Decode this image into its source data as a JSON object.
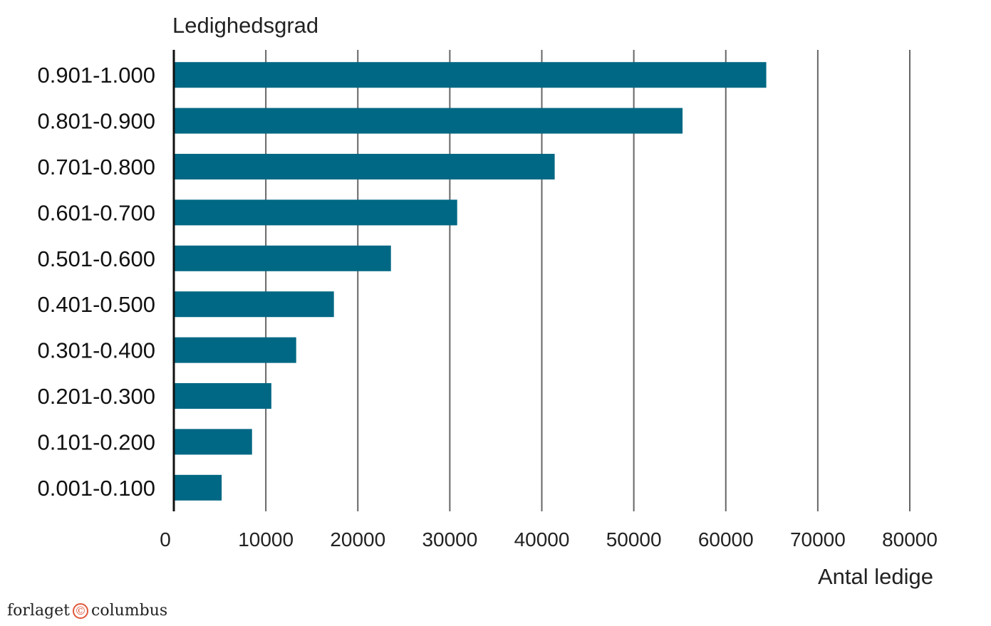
{
  "chart_data": {
    "type": "bar",
    "orientation": "horizontal",
    "title": "Ledighedsgrad",
    "xlabel": "Antal ledige",
    "ylabel": "",
    "categories": [
      "0.901-1.000",
      "0.801-0.900",
      "0.701-0.800",
      "0.601-0.700",
      "0.501-0.600",
      "0.401-0.500",
      "0.301-0.400",
      "0.201-0.300",
      "0.101-0.200",
      "0.001-0.100"
    ],
    "values": [
      64400,
      55300,
      41400,
      30800,
      23600,
      17400,
      13300,
      10600,
      8500,
      5200
    ],
    "xlim": [
      0,
      80000
    ],
    "xticks": [
      0,
      10000,
      20000,
      30000,
      40000,
      50000,
      60000,
      70000,
      80000
    ],
    "grid": "vertical",
    "bar_color": "#006884",
    "legend": "none"
  },
  "logo": {
    "left": "forlaget",
    "right": "columbus",
    "symbol": "©"
  }
}
